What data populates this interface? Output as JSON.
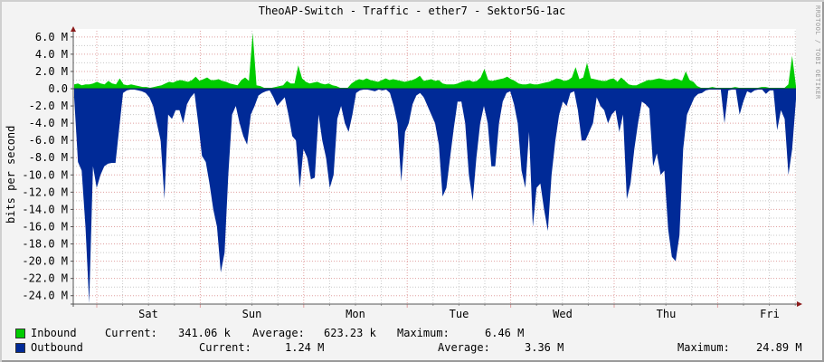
{
  "title": "TheoAP-Switch - Traffic - ether7 - Sektor5G-1ac",
  "watermark": "RRDTOOL / TOBI OETIKER",
  "colors": {
    "inbound": "#00cc00",
    "outbound": "#002a97",
    "major_grid": "#e0a0a0",
    "minor_grid": "#c8c8c8",
    "axis": "#555555",
    "arrow": "#8b1a1a",
    "plot_bg": "#ffffff"
  },
  "legend": {
    "inbound": {
      "label": "Inbound",
      "current_label": "Current:",
      "current": "341.06 k",
      "average_label": "Average:",
      "average": "623.23 k",
      "maximum_label": "Maximum:",
      "maximum": "6.46 M"
    },
    "outbound": {
      "label": "Outbound",
      "current_label": "Current:",
      "current": "1.24 M",
      "average_label": "Average:",
      "average": "3.36 M",
      "maximum_label": "Maximum:",
      "maximum": "24.89 M"
    }
  },
  "chart_data": {
    "type": "area",
    "title": "TheoAP-Switch - Traffic - ether7 - Sektor5G-1ac",
    "xlabel": "",
    "ylabel": "bits per second",
    "ylim": [
      -25000000,
      6500000
    ],
    "yticks": [
      "6.0 M",
      "4.0 M",
      "2.0 M",
      "0.0",
      "-2.0 M",
      "-4.0 M",
      "-6.0 M",
      "-8.0 M",
      "-10.0 M",
      "-12.0 M",
      "-14.0 M",
      "-16.0 M",
      "-18.0 M",
      "-20.0 M",
      "-22.0 M",
      "-24.0 M"
    ],
    "ytick_values": [
      6,
      4,
      2,
      0,
      -2,
      -4,
      -6,
      -8,
      -10,
      -12,
      -14,
      -16,
      -18,
      -20,
      -22,
      -24
    ],
    "xticks": [
      "Sat",
      "Sun",
      "Mon",
      "Tue",
      "Wed",
      "Thu",
      "Fri"
    ],
    "grid": true,
    "legend_position": "bottom",
    "x_unit": "days (Fri ~17:00 → Fri ~22:00, ~1 week)",
    "series": [
      {
        "name": "Inbound",
        "color": "#00cc00",
        "unit": "Mbps (plotted positive)",
        "values": [
          0.5,
          0.6,
          0.4,
          0.5,
          0.5,
          0.6,
          0.8,
          0.6,
          0.5,
          0.9,
          0.6,
          0.5,
          1.2,
          0.5,
          0.4,
          0.5,
          0.4,
          0.3,
          0.2,
          0.2,
          0.1,
          0.2,
          0.3,
          0.4,
          0.6,
          0.8,
          0.7,
          0.9,
          1.0,
          0.9,
          0.8,
          1.0,
          1.4,
          0.9,
          1.1,
          1.3,
          1.0,
          1.0,
          1.1,
          0.9,
          0.8,
          0.6,
          0.5,
          0.4,
          1.0,
          1.3,
          0.9,
          6.46,
          0.4,
          0.3,
          0.1,
          0.1,
          0.1,
          0.2,
          0.3,
          0.4,
          0.9,
          0.6,
          0.6,
          2.7,
          1.2,
          0.8,
          0.6,
          0.7,
          0.8,
          0.6,
          0.5,
          0.6,
          0.4,
          0.3,
          0.1,
          0.1,
          0.1,
          0.6,
          0.9,
          1.1,
          1.0,
          1.2,
          1.0,
          0.9,
          0.8,
          1.0,
          1.2,
          1.0,
          1.1,
          1.0,
          0.9,
          0.8,
          0.9,
          1.0,
          1.2,
          1.5,
          0.9,
          1.0,
          1.1,
          0.9,
          1.0,
          0.6,
          0.5,
          0.5,
          0.5,
          0.6,
          0.8,
          0.9,
          1.0,
          0.8,
          0.9,
          1.3,
          2.3,
          1.0,
          0.9,
          1.0,
          1.1,
          1.2,
          1.4,
          1.1,
          0.9,
          0.6,
          0.5,
          0.5,
          0.6,
          0.5,
          0.5,
          0.6,
          0.7,
          0.8,
          1.0,
          1.2,
          1.1,
          0.9,
          1.0,
          1.3,
          2.5,
          1.1,
          1.3,
          3.0,
          1.2,
          1.1,
          1.0,
          0.9,
          0.9,
          1.1,
          1.2,
          0.8,
          1.3,
          0.9,
          0.5,
          0.4,
          0.4,
          0.6,
          0.8,
          1.0,
          1.0,
          1.1,
          1.2,
          1.1,
          1.0,
          1.0,
          1.2,
          1.1,
          0.9,
          2.0,
          1.0,
          0.8,
          0.3,
          0.1,
          0.1,
          0.1,
          0.2,
          0.1,
          0.1,
          0.1,
          0.1,
          0.1,
          0.2,
          0.1,
          0.1,
          0.1,
          0.1,
          0.1,
          0.1,
          0.2,
          0.2,
          0.1,
          0.1,
          0.1,
          0.1,
          0.1,
          0.5,
          3.8,
          0.3
        ]
      },
      {
        "name": "Outbound",
        "color": "#002a97",
        "unit": "Mbps (plotted negative)",
        "values": [
          -1.0,
          -8.5,
          -9.5,
          -16,
          -24.89,
          -9,
          -11.5,
          -10,
          -9,
          -8.7,
          -8.6,
          -8.6,
          -4.5,
          -0.5,
          -0.2,
          -0.1,
          -0.1,
          -0.2,
          -0.3,
          -0.5,
          -1.0,
          -2,
          -4,
          -6,
          -12.8,
          -3,
          -3.5,
          -2.5,
          -2.5,
          -4,
          -1.8,
          -1.0,
          -0.5,
          -4,
          -7.8,
          -8.5,
          -11,
          -14,
          -16,
          -21.3,
          -19,
          -10,
          -3,
          -2,
          -4,
          -5.5,
          -6.5,
          -3,
          -2,
          -0.8,
          -0.5,
          -0.3,
          -0.2,
          -1.0,
          -2.0,
          -1.5,
          -1.0,
          -3,
          -5.5,
          -6,
          -11.5,
          -7,
          -8,
          -10.5,
          -10.3,
          -3,
          -6,
          -8,
          -11.5,
          -10,
          -3.5,
          -2,
          -4,
          -5,
          -3,
          -0.5,
          -0.2,
          -0.1,
          -0.1,
          -0.2,
          -0.3,
          -0.1,
          -0.2,
          -0.1,
          -0.5,
          -2,
          -4,
          -10.8,
          -5,
          -4,
          -1.8,
          -0.8,
          -0.5,
          -1.0,
          -2.0,
          -3,
          -4,
          -6.5,
          -12.5,
          -11.5,
          -8,
          -4.5,
          -1.5,
          -1.5,
          -4,
          -10,
          -13,
          -8,
          -4,
          -2,
          -4,
          -9,
          -9,
          -4,
          -1.5,
          -0.5,
          -0.3,
          -1.8,
          -4,
          -9.5,
          -11.5,
          -5,
          -16,
          -11.5,
          -11,
          -14,
          -16.5,
          -10,
          -6,
          -3,
          -1.5,
          -2,
          -0.5,
          -0.3,
          -2.5,
          -6,
          -6,
          -5,
          -4,
          -1.0,
          -2,
          -2.5,
          -4,
          -3,
          -2.5,
          -5,
          -3,
          -12.8,
          -11,
          -7,
          -4,
          -1.5,
          -1.8,
          -2.3,
          -9,
          -7.5,
          -10,
          -9.5,
          -16.3,
          -19.5,
          -20,
          -17,
          -7,
          -3,
          -2,
          -1.0,
          -0.6,
          -0.5,
          -0.2,
          -0.1,
          -0.1,
          -0.1,
          -0.1,
          -4,
          -0.2,
          -0.1,
          -0.1,
          -3,
          -1.5,
          -0.3,
          -0.5,
          -0.2,
          -0.1,
          -0.1,
          -0.6,
          -0.2,
          -0.2,
          -4.8,
          -2.5,
          -3.5,
          -10,
          -7,
          -1.24
        ]
      }
    ]
  }
}
